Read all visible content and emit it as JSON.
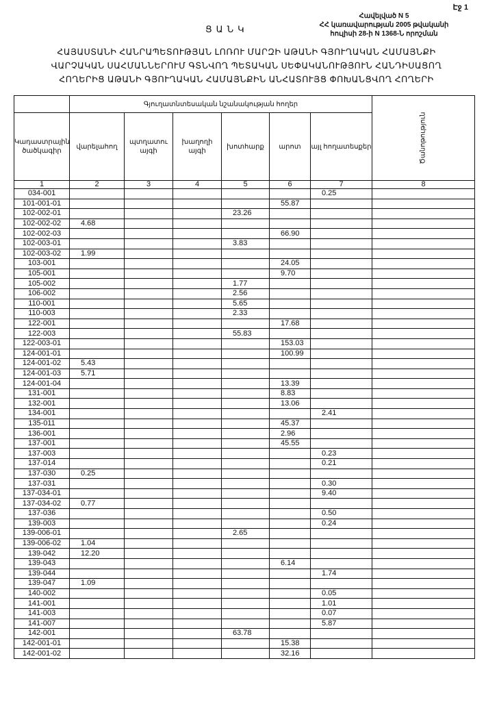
{
  "page_label": "Էջ 1",
  "annex": {
    "line1": "Հավելված N 5",
    "line2": "ՀՀ կառավարության 2005 թվականի",
    "line3": "հուլիսի 28-ի N 1368-Ն որոշման"
  },
  "title": "ՑԱՆԿ",
  "heading": {
    "line1": "ՀԱՅԱՍՏԱՆԻ ՀԱՆՐԱՊԵՏՈՒԹՅԱՆ ԼՈՌՈՒ ՄԱՐԶԻ ԱԹԱՆԻ ԳՅՈՒՂԱԿԱՆ ՀԱՄԱՅՆՔԻ",
    "line2": "ՎԱՐՉԱԿԱՆ ՍԱՀՄԱՆՆԵՐՈՒՄ ԳՏՆՎՈՂ ՊԵՏԱԿԱՆ ՍԵՓԱԿԱՆՈՒԹՅՈՒՆ ՀԱՆԴԻՍԱՑՈՂ",
    "line3": "ՀՈՂԵՐԻՑ ԱԹԱՆԻ ԳՅՈՒՂԱԿԱՆ ՀԱՄԱՅՆՔԻՆ ԱՆՀԱՏՈՒՅՑ ՓՈԽԱՆՑՎՈՂ ՀՈՂԵՐԻ"
  },
  "table": {
    "group_header": "Գյուղատնտեսական նշանակության հողեր",
    "columns": [
      "Կադաստրային ծածկագիր",
      "վարելահող",
      "պտղատու այգի",
      "խաղողի այգի",
      "խոտհարք",
      "արոտ",
      "այլ հողատեսքեր",
      "Ծանոթություն"
    ],
    "column_numbers": [
      "1",
      "2",
      "3",
      "4",
      "5",
      "6",
      "7",
      "8"
    ],
    "rows": [
      [
        "034-001",
        "",
        "",
        "",
        "",
        "",
        "0.25",
        ""
      ],
      [
        "101-001-01",
        "",
        "",
        "",
        "",
        "55.87",
        "",
        ""
      ],
      [
        "102-002-01",
        "",
        "",
        "",
        "23.26",
        "",
        "",
        ""
      ],
      [
        "102-002-02",
        "4.68",
        "",
        "",
        "",
        "",
        "",
        ""
      ],
      [
        "102-002-03",
        "",
        "",
        "",
        "",
        "66.90",
        "",
        ""
      ],
      [
        "102-003-01",
        "",
        "",
        "",
        "3.83",
        "",
        "",
        ""
      ],
      [
        "102-003-02",
        "1.99",
        "",
        "",
        "",
        "",
        "",
        ""
      ],
      [
        "103-001",
        "",
        "",
        "",
        "",
        "24.05",
        "",
        ""
      ],
      [
        "105-001",
        "",
        "",
        "",
        "",
        "9.70",
        "",
        ""
      ],
      [
        "105-002",
        "",
        "",
        "",
        "1.77",
        "",
        "",
        ""
      ],
      [
        "106-002",
        "",
        "",
        "",
        "2.56",
        "",
        "",
        ""
      ],
      [
        "110-001",
        "",
        "",
        "",
        "5.65",
        "",
        "",
        ""
      ],
      [
        "110-003",
        "",
        "",
        "",
        "2.33",
        "",
        "",
        ""
      ],
      [
        "122-001",
        "",
        "",
        "",
        "",
        "17.68",
        "",
        ""
      ],
      [
        "122-003",
        "",
        "",
        "",
        "55.83",
        "",
        "",
        ""
      ],
      [
        "122-003-01",
        "",
        "",
        "",
        "",
        "153.03",
        "",
        ""
      ],
      [
        "124-001-01",
        "",
        "",
        "",
        "",
        "100.99",
        "",
        ""
      ],
      [
        "124-001-02",
        "5.43",
        "",
        "",
        "",
        "",
        "",
        ""
      ],
      [
        "124-001-03",
        "5.71",
        "",
        "",
        "",
        "",
        "",
        ""
      ],
      [
        "124-001-04",
        "",
        "",
        "",
        "",
        "13.39",
        "",
        ""
      ],
      [
        "131-001",
        "",
        "",
        "",
        "",
        "8.83",
        "",
        ""
      ],
      [
        "132-001",
        "",
        "",
        "",
        "",
        "13.06",
        "",
        ""
      ],
      [
        "134-001",
        "",
        "",
        "",
        "",
        "",
        "2.41",
        ""
      ],
      [
        "135-011",
        "",
        "",
        "",
        "",
        "45.37",
        "",
        ""
      ],
      [
        "136-001",
        "",
        "",
        "",
        "",
        "2.96",
        "",
        ""
      ],
      [
        "137-001",
        "",
        "",
        "",
        "",
        "45.55",
        "",
        ""
      ],
      [
        "137-003",
        "",
        "",
        "",
        "",
        "",
        "0.23",
        ""
      ],
      [
        "137-014",
        "",
        "",
        "",
        "",
        "",
        "0.21",
        ""
      ],
      [
        "137-030",
        "0.25",
        "",
        "",
        "",
        "",
        "",
        ""
      ],
      [
        "137-031",
        "",
        "",
        "",
        "",
        "",
        "0.30",
        ""
      ],
      [
        "137-034-01",
        "",
        "",
        "",
        "",
        "",
        "9.40",
        ""
      ],
      [
        "137-034-02",
        "0.77",
        "",
        "",
        "",
        "",
        "",
        ""
      ],
      [
        "137-036",
        "",
        "",
        "",
        "",
        "",
        "0.50",
        ""
      ],
      [
        "139-003",
        "",
        "",
        "",
        "",
        "",
        "0.24",
        ""
      ],
      [
        "139-006-01",
        "",
        "",
        "",
        "2.65",
        "",
        "",
        ""
      ],
      [
        "139-006-02",
        "1.04",
        "",
        "",
        "",
        "",
        "",
        ""
      ],
      [
        "139-042",
        "12.20",
        "",
        "",
        "",
        "",
        "",
        ""
      ],
      [
        "139-043",
        "",
        "",
        "",
        "",
        "6.14",
        "",
        ""
      ],
      [
        "139-044",
        "",
        "",
        "",
        "",
        "",
        "1.74",
        ""
      ],
      [
        "139-047",
        "1.09",
        "",
        "",
        "",
        "",
        "",
        ""
      ],
      [
        "140-002",
        "",
        "",
        "",
        "",
        "",
        "0.05",
        ""
      ],
      [
        "141-001",
        "",
        "",
        "",
        "",
        "",
        "1.01",
        ""
      ],
      [
        "141-003",
        "",
        "",
        "",
        "",
        "",
        "0.07",
        ""
      ],
      [
        "141-007",
        "",
        "",
        "",
        "",
        "",
        "5.87",
        ""
      ],
      [
        "142-001",
        "",
        "",
        "",
        "63.78",
        "",
        "",
        ""
      ],
      [
        "142-001-01",
        "",
        "",
        "",
        "",
        "15.38",
        "",
        ""
      ],
      [
        "142-001-02",
        "",
        "",
        "",
        "",
        "32.16",
        "",
        ""
      ]
    ]
  }
}
